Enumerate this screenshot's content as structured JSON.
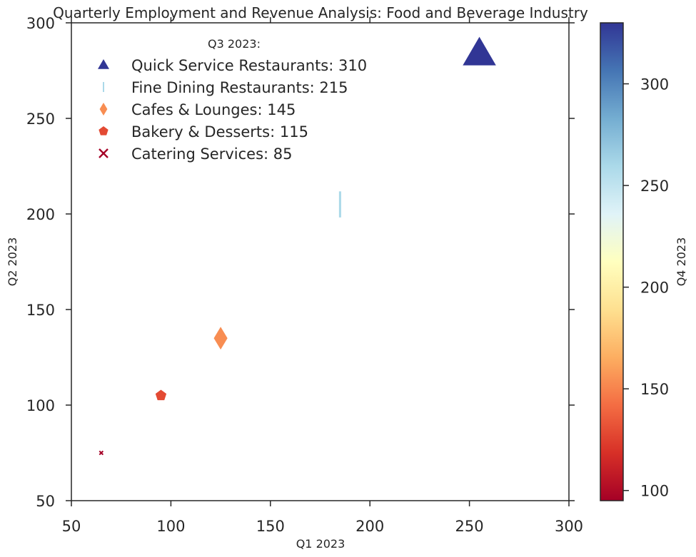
{
  "chart_data": {
    "type": "scatter",
    "title": "Quarterly Employment and Revenue Analysis: Food and Beverage Industry",
    "xlabel": "Q1 2023",
    "ylabel": "Q2 2023",
    "colorbar_label": "Q4 2023",
    "legend_title": "Q3 2023:",
    "xlim": [
      50,
      300
    ],
    "ylim": [
      50,
      300
    ],
    "clim": [
      95,
      330
    ],
    "xticks": [
      "50",
      "100",
      "150",
      "200",
      "250",
      "300"
    ],
    "yticks": [
      "50",
      "100",
      "150",
      "200",
      "250",
      "300"
    ],
    "cticks": [
      "100",
      "150",
      "200",
      "250",
      "300"
    ],
    "colormap": "RdYlBu",
    "legend_position": "upper-left",
    "grid": false,
    "series": [
      {
        "name": "Quick Service Restaurants: 310",
        "x": 255,
        "y": 284,
        "q3": 310,
        "q4": 330,
        "marker": "triangle",
        "color": "#313695"
      },
      {
        "name": "Fine Dining Restaurants: 215",
        "x": 185,
        "y": 205,
        "q3": 215,
        "q4": 255,
        "marker": "vline",
        "color": "#abd9e9"
      },
      {
        "name": "Cafes & Lounges: 145",
        "x": 125,
        "y": 135,
        "q3": 145,
        "q4": 160,
        "marker": "diamond",
        "color": "#f88d52"
      },
      {
        "name": "Bakery & Desserts: 115",
        "x": 95,
        "y": 105,
        "q3": 115,
        "q4": 125,
        "marker": "pentagon",
        "color": "#e34a33"
      },
      {
        "name": "Catering Services: 85",
        "x": 65,
        "y": 75,
        "q3": 85,
        "q4": 95,
        "marker": "x",
        "color": "#a50026"
      }
    ]
  }
}
